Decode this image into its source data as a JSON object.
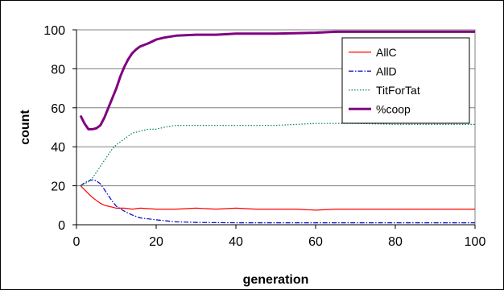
{
  "chart_data": {
    "type": "line",
    "title": "",
    "xlabel": "generation",
    "ylabel": "count",
    "xlim": [
      0,
      100
    ],
    "ylim": [
      0,
      100
    ],
    "x_ticks": [
      "0",
      "20",
      "40",
      "60",
      "80",
      "100"
    ],
    "y_ticks": [
      "0",
      "20",
      "40",
      "60",
      "80",
      "100"
    ],
    "grid": "horizontal",
    "legend_position": "top-right",
    "series": [
      {
        "name": "AllC",
        "color": "#ff0000",
        "style": "solid",
        "points": [
          [
            1,
            20
          ],
          [
            2,
            18
          ],
          [
            3,
            16
          ],
          [
            4,
            14
          ],
          [
            5,
            12.5
          ],
          [
            6,
            11
          ],
          [
            7,
            10
          ],
          [
            8,
            9.5
          ],
          [
            9,
            9
          ],
          [
            10,
            8.5
          ],
          [
            12,
            8.5
          ],
          [
            14,
            8
          ],
          [
            16,
            8.5
          ],
          [
            20,
            8
          ],
          [
            25,
            8
          ],
          [
            30,
            8.5
          ],
          [
            35,
            8
          ],
          [
            40,
            8.5
          ],
          [
            45,
            8
          ],
          [
            50,
            8
          ],
          [
            55,
            8
          ],
          [
            60,
            7.5
          ],
          [
            65,
            8
          ],
          [
            70,
            8
          ],
          [
            75,
            8
          ],
          [
            80,
            8
          ],
          [
            85,
            8
          ],
          [
            90,
            8
          ],
          [
            95,
            8
          ],
          [
            100,
            8
          ]
        ]
      },
      {
        "name": "AllD",
        "color": "#0000cc",
        "style": "dashdot",
        "points": [
          [
            1,
            20
          ],
          [
            2,
            21.5
          ],
          [
            3,
            22.5
          ],
          [
            4,
            23
          ],
          [
            5,
            22.5
          ],
          [
            6,
            21
          ],
          [
            7,
            18
          ],
          [
            8,
            15
          ],
          [
            9,
            12
          ],
          [
            10,
            9.5
          ],
          [
            12,
            7
          ],
          [
            14,
            5
          ],
          [
            16,
            3.5
          ],
          [
            18,
            3
          ],
          [
            20,
            2.5
          ],
          [
            25,
            1.5
          ],
          [
            30,
            1.2
          ],
          [
            40,
            1
          ],
          [
            50,
            1
          ],
          [
            60,
            1
          ],
          [
            70,
            1
          ],
          [
            80,
            1
          ],
          [
            90,
            1
          ],
          [
            100,
            1
          ]
        ]
      },
      {
        "name": "TitForTat",
        "color": "#008060",
        "style": "dotted",
        "points": [
          [
            1,
            20
          ],
          [
            2,
            21
          ],
          [
            3,
            22
          ],
          [
            4,
            24
          ],
          [
            5,
            27
          ],
          [
            6,
            30
          ],
          [
            7,
            33
          ],
          [
            8,
            36
          ],
          [
            9,
            39
          ],
          [
            10,
            41
          ],
          [
            12,
            44
          ],
          [
            14,
            47
          ],
          [
            16,
            48
          ],
          [
            18,
            49
          ],
          [
            20,
            49
          ],
          [
            22,
            50
          ],
          [
            25,
            51
          ],
          [
            30,
            51
          ],
          [
            40,
            51
          ],
          [
            50,
            51
          ],
          [
            60,
            52
          ],
          [
            70,
            52
          ],
          [
            80,
            51.5
          ],
          [
            90,
            51.5
          ],
          [
            100,
            51.5
          ]
        ]
      },
      {
        "name": "%coop",
        "color": "#800080",
        "style": "solid-thick",
        "points": [
          [
            1,
            56
          ],
          [
            2,
            52
          ],
          [
            3,
            49
          ],
          [
            4,
            49
          ],
          [
            5,
            49.5
          ],
          [
            6,
            51
          ],
          [
            7,
            55
          ],
          [
            8,
            60
          ],
          [
            9,
            65
          ],
          [
            10,
            70
          ],
          [
            11,
            76
          ],
          [
            12,
            81
          ],
          [
            13,
            85
          ],
          [
            14,
            88
          ],
          [
            15,
            90
          ],
          [
            16,
            91.5
          ],
          [
            18,
            93
          ],
          [
            20,
            95
          ],
          [
            22,
            96
          ],
          [
            25,
            97
          ],
          [
            30,
            97.5
          ],
          [
            35,
            97.5
          ],
          [
            40,
            98
          ],
          [
            50,
            98
          ],
          [
            60,
            98.5
          ],
          [
            65,
            99
          ],
          [
            70,
            99
          ],
          [
            80,
            99
          ],
          [
            90,
            99
          ],
          [
            100,
            99
          ]
        ]
      }
    ]
  }
}
